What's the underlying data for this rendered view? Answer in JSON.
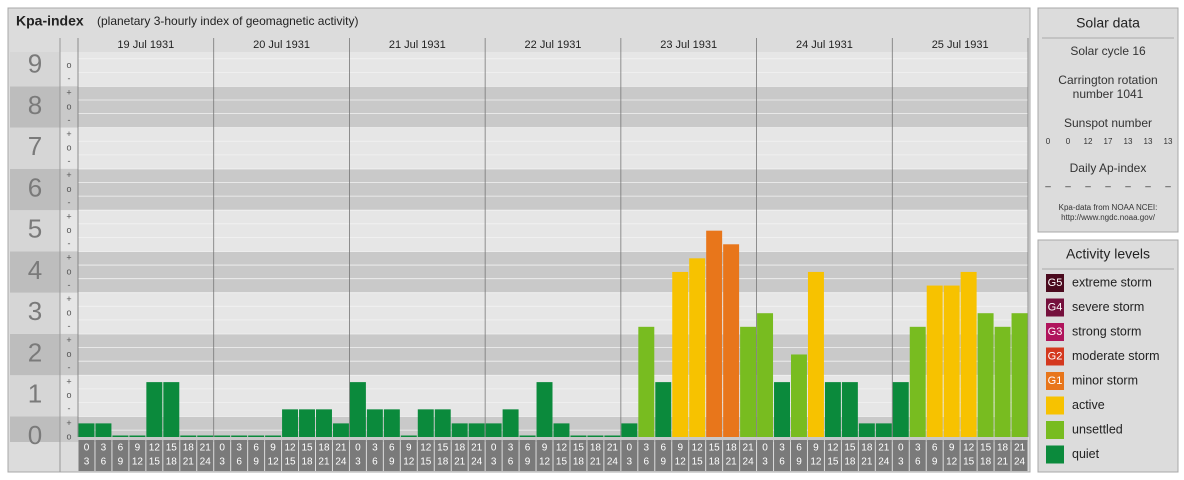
{
  "chart_data": {
    "type": "bar",
    "title": "Kpa-index",
    "subtitle": "(planetary 3-hourly index of geomagnetic activity)",
    "days": [
      "19 Jul 1931",
      "20 Jul 1931",
      "21 Jul 1931",
      "22 Jul 1931",
      "23 Jul 1931",
      "24 Jul 1931",
      "25 Jul 1931"
    ],
    "categories": [
      [
        "0",
        "3"
      ],
      [
        "3",
        "6"
      ],
      [
        "6",
        "9"
      ],
      [
        "9",
        "12"
      ],
      [
        "12",
        "15"
      ],
      [
        "15",
        "18"
      ],
      [
        "18",
        "21"
      ],
      [
        "21",
        "24"
      ],
      [
        "0",
        "3"
      ],
      [
        "3",
        "6"
      ],
      [
        "6",
        "9"
      ],
      [
        "9",
        "12"
      ],
      [
        "12",
        "15"
      ],
      [
        "15",
        "18"
      ],
      [
        "18",
        "21"
      ],
      [
        "21",
        "24"
      ],
      [
        "0",
        "3"
      ],
      [
        "3",
        "6"
      ],
      [
        "6",
        "9"
      ],
      [
        "9",
        "12"
      ],
      [
        "12",
        "15"
      ],
      [
        "15",
        "18"
      ],
      [
        "18",
        "21"
      ],
      [
        "21",
        "24"
      ],
      [
        "0",
        "3"
      ],
      [
        "3",
        "6"
      ],
      [
        "6",
        "9"
      ],
      [
        "9",
        "12"
      ],
      [
        "12",
        "15"
      ],
      [
        "15",
        "18"
      ],
      [
        "18",
        "21"
      ],
      [
        "21",
        "24"
      ],
      [
        "0",
        "3"
      ],
      [
        "3",
        "6"
      ],
      [
        "6",
        "9"
      ],
      [
        "9",
        "12"
      ],
      [
        "12",
        "15"
      ],
      [
        "15",
        "18"
      ],
      [
        "18",
        "21"
      ],
      [
        "21",
        "24"
      ],
      [
        "0",
        "3"
      ],
      [
        "3",
        "6"
      ],
      [
        "6",
        "9"
      ],
      [
        "9",
        "12"
      ],
      [
        "12",
        "15"
      ],
      [
        "15",
        "18"
      ],
      [
        "18",
        "21"
      ],
      [
        "21",
        "24"
      ],
      [
        "0",
        "3"
      ],
      [
        "3",
        "6"
      ],
      [
        "6",
        "9"
      ],
      [
        "9",
        "12"
      ],
      [
        "12",
        "15"
      ],
      [
        "15",
        "18"
      ],
      [
        "18",
        "21"
      ],
      [
        "21",
        "24"
      ]
    ],
    "values": [
      0.33,
      0.33,
      0,
      0,
      1.33,
      1.33,
      0,
      0,
      0,
      0,
      0,
      0,
      0.67,
      0.67,
      0.67,
      0.33,
      1.33,
      0.67,
      0.67,
      0,
      0.67,
      0.67,
      0.33,
      0.33,
      0.33,
      0.67,
      0,
      1.33,
      0.33,
      0,
      0,
      0,
      0.33,
      2.67,
      1.33,
      4,
      4.33,
      5,
      4.67,
      2.67,
      3,
      1.33,
      2,
      4,
      1.33,
      1.33,
      0.33,
      0.33,
      1.33,
      2.67,
      3.67,
      3.67,
      4,
      3,
      2.67,
      3
    ],
    "colors": [
      "#0b8a3c",
      "#0b8a3c",
      "#0b8a3c",
      "#0b8a3c",
      "#0b8a3c",
      "#0b8a3c",
      "#0b8a3c",
      "#0b8a3c",
      "#0b8a3c",
      "#0b8a3c",
      "#0b8a3c",
      "#0b8a3c",
      "#0b8a3c",
      "#0b8a3c",
      "#0b8a3c",
      "#0b8a3c",
      "#0b8a3c",
      "#0b8a3c",
      "#0b8a3c",
      "#0b8a3c",
      "#0b8a3c",
      "#0b8a3c",
      "#0b8a3c",
      "#0b8a3c",
      "#0b8a3c",
      "#0b8a3c",
      "#0b8a3c",
      "#0b8a3c",
      "#0b8a3c",
      "#0b8a3c",
      "#0b8a3c",
      "#0b8a3c",
      "#0b8a3c",
      "#78bc20",
      "#0b8a3c",
      "#f7c200",
      "#f7c200",
      "#e8761b",
      "#e8761b",
      "#78bc20",
      "#78bc20",
      "#0b8a3c",
      "#78bc20",
      "#f7c200",
      "#0b8a3c",
      "#0b8a3c",
      "#0b8a3c",
      "#0b8a3c",
      "#0b8a3c",
      "#78bc20",
      "#f7c200",
      "#f7c200",
      "#f7c200",
      "#78bc20",
      "#78bc20",
      "#78bc20"
    ],
    "ylim": [
      0,
      9.33
    ],
    "yticks": [
      0,
      1,
      2,
      3,
      4,
      5,
      6,
      7,
      8,
      9
    ],
    "minor_ticks": [
      {
        "value": 0,
        "label": "o"
      },
      {
        "value": 0.33,
        "label": "+"
      },
      {
        "value": 0.67,
        "label": "-"
      },
      {
        "value": 1,
        "label": "o"
      },
      {
        "value": 1.33,
        "label": "+"
      },
      {
        "value": 1.67,
        "label": "-"
      },
      {
        "value": 2,
        "label": "o"
      },
      {
        "value": 2.33,
        "label": "+"
      },
      {
        "value": 2.67,
        "label": "-"
      },
      {
        "value": 3,
        "label": "o"
      },
      {
        "value": 3.33,
        "label": "+"
      },
      {
        "value": 3.67,
        "label": "-"
      },
      {
        "value": 4,
        "label": "o"
      },
      {
        "value": 4.33,
        "label": "+"
      },
      {
        "value": 4.67,
        "label": "-"
      },
      {
        "value": 5,
        "label": "o"
      },
      {
        "value": 5.33,
        "label": "+"
      },
      {
        "value": 5.67,
        "label": "-"
      },
      {
        "value": 6,
        "label": "o"
      },
      {
        "value": 6.33,
        "label": "+"
      },
      {
        "value": 6.67,
        "label": "-"
      },
      {
        "value": 7,
        "label": "o"
      },
      {
        "value": 7.33,
        "label": "+"
      },
      {
        "value": 7.67,
        "label": "-"
      },
      {
        "value": 8,
        "label": "o"
      },
      {
        "value": 8.33,
        "label": "+"
      },
      {
        "value": 8.67,
        "label": "-"
      },
      {
        "value": 9,
        "label": "o"
      }
    ]
  },
  "solar_data": {
    "title": "Solar data",
    "cycle": "Solar cycle 16",
    "carrington": [
      "Carrington rotation",
      "number 1041"
    ],
    "sunspot_title": "Sunspot number",
    "sunspots": [
      0,
      0,
      12,
      17,
      13,
      13,
      13
    ],
    "ap_title": "Daily Ap-index",
    "ap": [
      "–",
      "–",
      "–",
      "–",
      "–",
      "–",
      "–"
    ],
    "source": [
      "Kpa-data from NOAA NCEI:",
      "http://www.ngdc.noaa.gov/"
    ]
  },
  "activity_levels": {
    "title": "Activity levels",
    "items": [
      {
        "code": "G5",
        "label": "extreme storm",
        "color": "#4a0a1e"
      },
      {
        "code": "G4",
        "label": "severe storm",
        "color": "#74103c"
      },
      {
        "code": "G3",
        "label": "strong storm",
        "color": "#b0145c"
      },
      {
        "code": "G2",
        "label": "moderate storm",
        "color": "#d4381e"
      },
      {
        "code": "G1",
        "label": "minor storm",
        "color": "#e8761b"
      },
      {
        "label": "active",
        "color": "#f7c200"
      },
      {
        "label": "unsettled",
        "color": "#78bc20"
      },
      {
        "label": "quiet",
        "color": "#0b8a3c"
      }
    ]
  }
}
